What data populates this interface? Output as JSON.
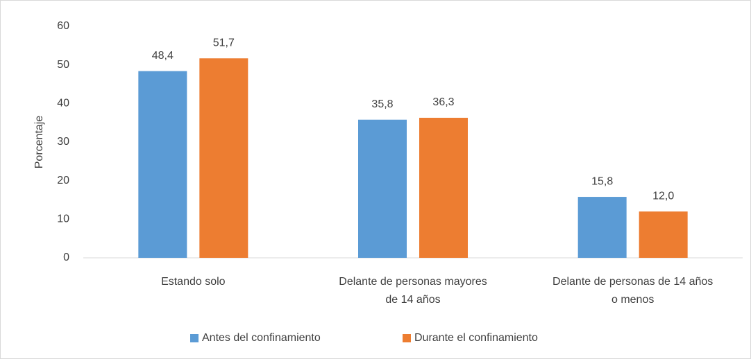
{
  "chart_data": {
    "type": "bar",
    "y_label": "Porcentaje",
    "categories": [
      "Estando solo",
      "Delante de personas mayores\nde 14 años",
      "Delante de personas de 14 años\no menos"
    ],
    "series": [
      {
        "name": "Antes del confinamiento",
        "color": "#5b9bd5",
        "values": [
          48.4,
          35.8,
          15.8
        ],
        "value_labels": [
          "48,4",
          "35,8",
          "15,8"
        ]
      },
      {
        "name": "Durante el confinamiento",
        "color": "#ed7d31",
        "values": [
          51.7,
          36.3,
          12.0
        ],
        "value_labels": [
          "51,7",
          "36,3",
          "12,0"
        ]
      }
    ],
    "ylim": [
      0,
      60
    ],
    "yticks": [
      0,
      10,
      20,
      30,
      40,
      50,
      60
    ],
    "grid": false,
    "legend": "bottom"
  }
}
